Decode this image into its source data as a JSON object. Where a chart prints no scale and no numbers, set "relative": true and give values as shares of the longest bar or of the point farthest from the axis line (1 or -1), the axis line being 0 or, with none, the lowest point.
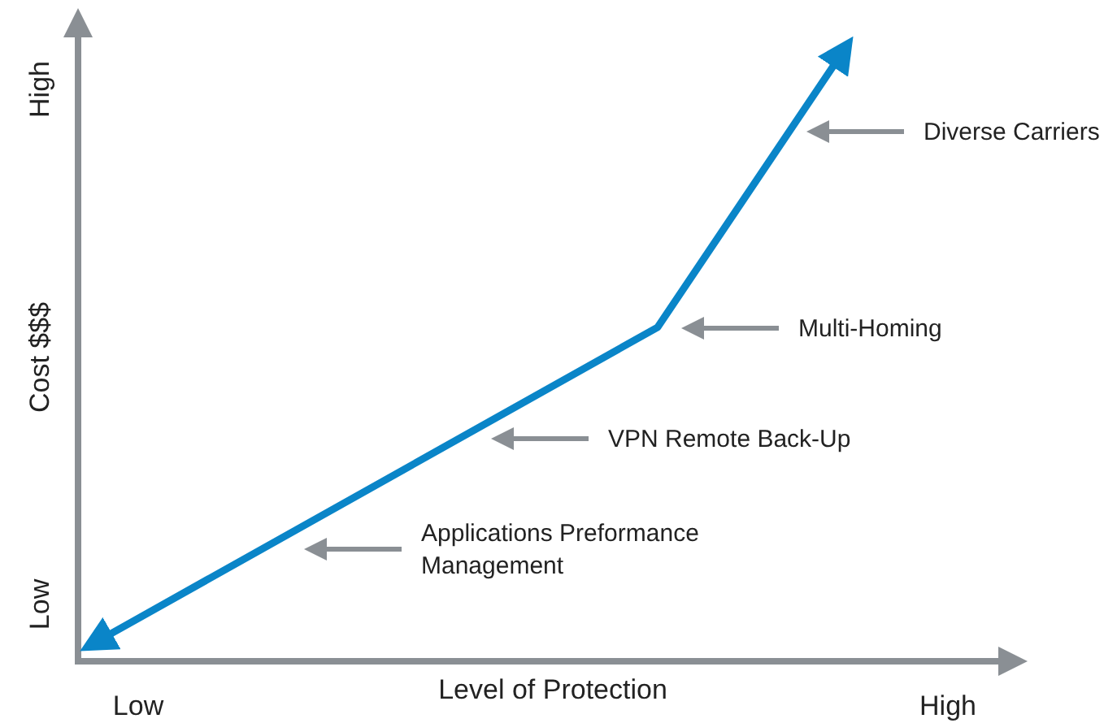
{
  "chart_data": {
    "type": "line",
    "xlabel": "Level of Protection",
    "ylabel": "Cost $$$",
    "relative": true,
    "categories": [
      null,
      null,
      null,
      null,
      null
    ],
    "series": [
      {
        "color": "#0a85c8",
        "values": [
          0.02,
          null,
          null,
          0.54,
          1
        ]
      }
    ],
    "marker": "none",
    "line_style": "solid",
    "annotations": [
      "Low",
      "High",
      "Low",
      "High",
      "Applications Preformance Management",
      "VPN Remote Back-Up",
      "Multi-Homing",
      "Diverse Carriers"
    ]
  }
}
